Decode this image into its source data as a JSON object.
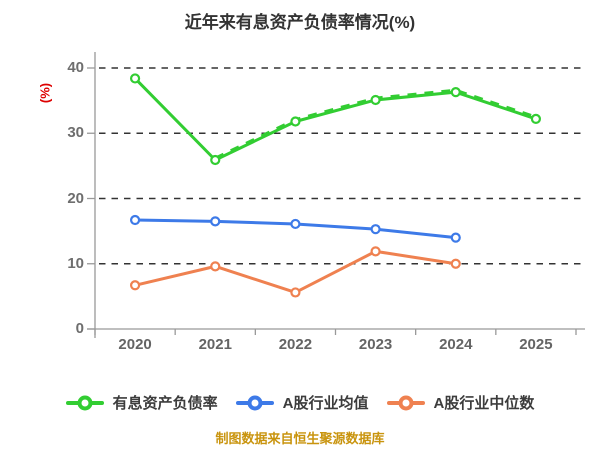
{
  "title": "近年来有息资产负债率情况(%)",
  "y_axis_label": "(%)",
  "footer": "制图数据来自恒生聚源数据库",
  "colors": {
    "background": "#ffffff",
    "title_text": "#333333",
    "axis": "#999999",
    "grid": "#333333",
    "tick_label": "#6e6e6e",
    "y_axis_label": "#dd0000",
    "legend_text": "#3c3c3c",
    "footer_text": "#c9940e",
    "series_green": "#32cd32",
    "series_blue": "#3d7ae8",
    "series_orange": "#ef8150"
  },
  "chart_data": {
    "type": "line",
    "title": "近年来有息资产负债率情况(%)",
    "xlabel": "",
    "ylabel": "(%)",
    "categories": [
      "2020",
      "2021",
      "2022",
      "2023",
      "2024",
      "2025"
    ],
    "series": [
      {
        "name": "有息资产负债率",
        "color": "#32cd32",
        "values": [
          38.4,
          25.9,
          31.8,
          35.1,
          36.3,
          32.2
        ],
        "marker": "circle-white-fill",
        "dashed_overlay": true
      },
      {
        "name": "A股行业均值",
        "color": "#3d7ae8",
        "values": [
          16.7,
          16.5,
          16.1,
          15.3,
          14.0,
          null
        ],
        "marker": "circle-white-fill",
        "dashed_overlay": false
      },
      {
        "name": "A股行业中位数",
        "color": "#ef8150",
        "values": [
          6.7,
          9.6,
          5.6,
          11.9,
          10.0,
          null
        ],
        "marker": "circle-white-fill",
        "dashed_overlay": false
      }
    ],
    "yticks": [
      0,
      10,
      20,
      30,
      40
    ],
    "ylim": [
      0,
      40
    ],
    "grid": "horizontal-dashed",
    "legend_position": "bottom"
  }
}
